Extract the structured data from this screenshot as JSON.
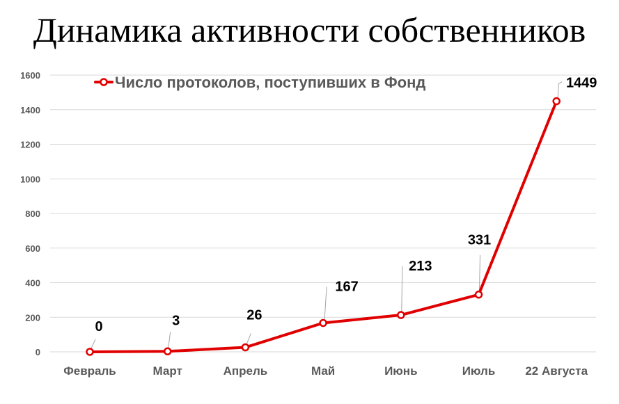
{
  "chart_data": {
    "type": "line",
    "title": "Динамика активности собственников",
    "categories": [
      "Февраль",
      "Март",
      "Апрель",
      "Май",
      "Июнь",
      "Июль",
      "22 Августа"
    ],
    "series": [
      {
        "name": "Число протоколов, поступивших в Фонд",
        "values": [
          0,
          3,
          26,
          167,
          213,
          331,
          1449
        ]
      }
    ],
    "yticks": [
      0,
      200,
      400,
      600,
      800,
      1000,
      1200,
      1400,
      1600
    ],
    "ylim": [
      0,
      1600
    ],
    "grid": true,
    "legend_position": "top-left",
    "series_color": "#e00000",
    "grid_color": "#d9d9d9"
  }
}
